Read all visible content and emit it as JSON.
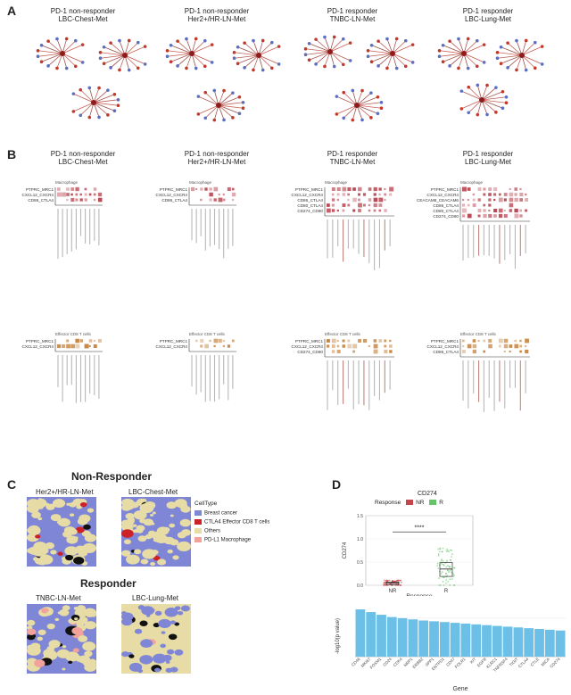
{
  "panels": {
    "A": "A",
    "B": "B",
    "C": "C",
    "D": "D"
  },
  "groups": [
    {
      "line1": "PD-1 non-responder",
      "line2": "LBC-Chest-Met"
    },
    {
      "line1": "PD-1 non-responder",
      "line2": "Her2+/HR-LN-Met"
    },
    {
      "line1": "PD-1 responder",
      "line2": "TNBC-LN-Met"
    },
    {
      "line1": "PD-1 responder",
      "line2": "LBC-Lung-Met"
    }
  ],
  "panelB": {
    "macrophage": {
      "title": "Macrophage",
      "rows": [
        [
          "PTPRC_MRC1",
          "CXCL12_CXCR4",
          "CD86_CTLA4"
        ],
        [
          "PTPRC_MRC1",
          "CXCL12_CXCR4",
          "CD86_CTLA4"
        ],
        [
          "PTPRC_MRC1",
          "CXCL12_CXCR4",
          "CD86_CTLA4",
          "CD80_CTLA4",
          "CD274_CD80"
        ],
        [
          "PTPRC_MRC1",
          "CXCL12_CXCR4",
          "CEACAM8_CEACAM6",
          "CD86_CTLA4",
          "CD80_CTLA4",
          "CD274_CD80"
        ]
      ]
    },
    "cd8": {
      "title": "Effector CD8 T cells",
      "rows": [
        [
          "PTPRC_MRC1",
          "CXCL12_CXCR4"
        ],
        [
          "PTPRC_MRC1",
          "CXCL12_CXCR4"
        ],
        [
          "PTPRC_MRC1",
          "CXCL12_CXCR4",
          "CD274_CD80"
        ],
        [
          "PTPRC_MRC1",
          "CXCL12_CXCR4",
          "CD86_CTLA4"
        ]
      ]
    }
  },
  "panelC": {
    "nonresponder_title": "Non-Responder",
    "responder_title": "Responder",
    "maps": [
      "Her2+/HR-LN-Met",
      "LBC-Chest-Met",
      "TNBC-LN-Met",
      "LBC-Lung-Met"
    ],
    "legend_title": "CellType",
    "legend": [
      {
        "label": "Breast cancer",
        "color": "#7f86d6"
      },
      {
        "label": "CTLA4 Effector CD8 T cells",
        "color": "#cc2127"
      },
      {
        "label": "Others",
        "color": "#e7dca6"
      },
      {
        "label": "PD-L1 Macrophage",
        "color": "#f2a29a"
      }
    ]
  },
  "panelD": {
    "box_title": "CD274",
    "response_label": "Response",
    "legend_nr": "NR",
    "legend_r": "R",
    "signif": "****",
    "ylabel_box": "CD274",
    "xlabel_box": "Response",
    "ylabel_bar": "-log10(p value)",
    "xlabel_bar": "Gene"
  },
  "chart_data": [
    {
      "type": "box",
      "title": "CD274",
      "categories": [
        "NR",
        "R"
      ],
      "colors": {
        "NR": "#c4454a",
        "R": "#67c36a"
      },
      "xlabel": "Response",
      "ylabel": "CD274",
      "yticks": [
        0.0,
        0.5,
        1.0,
        1.5
      ],
      "medians": [
        0.05,
        0.35
      ],
      "annotation": "****"
    },
    {
      "type": "bar",
      "xlabel": "Gene",
      "ylabel": "-log10(p value)",
      "color": "#6cc0e8",
      "categories": [
        "CD46",
        "MKI67",
        "FOXM1",
        "CD24",
        "CDK4",
        "NRP1",
        "ERBB2",
        "SPP1",
        "ENTPD1",
        "CD47",
        "FOLR1",
        "KIT",
        "EGFR",
        "KLRC1",
        "TNFRSF4",
        "TIGIT",
        "CTLA4",
        "CTLE",
        "MICA",
        "CD274"
      ],
      "values": [
        12.3,
        11.6,
        10.9,
        10.3,
        10.0,
        9.7,
        9.4,
        9.2,
        9.0,
        8.8,
        8.6,
        8.4,
        8.2,
        8.0,
        7.8,
        7.6,
        7.4,
        7.2,
        7.0,
        6.8
      ],
      "ylim": [
        0,
        13
      ]
    }
  ]
}
